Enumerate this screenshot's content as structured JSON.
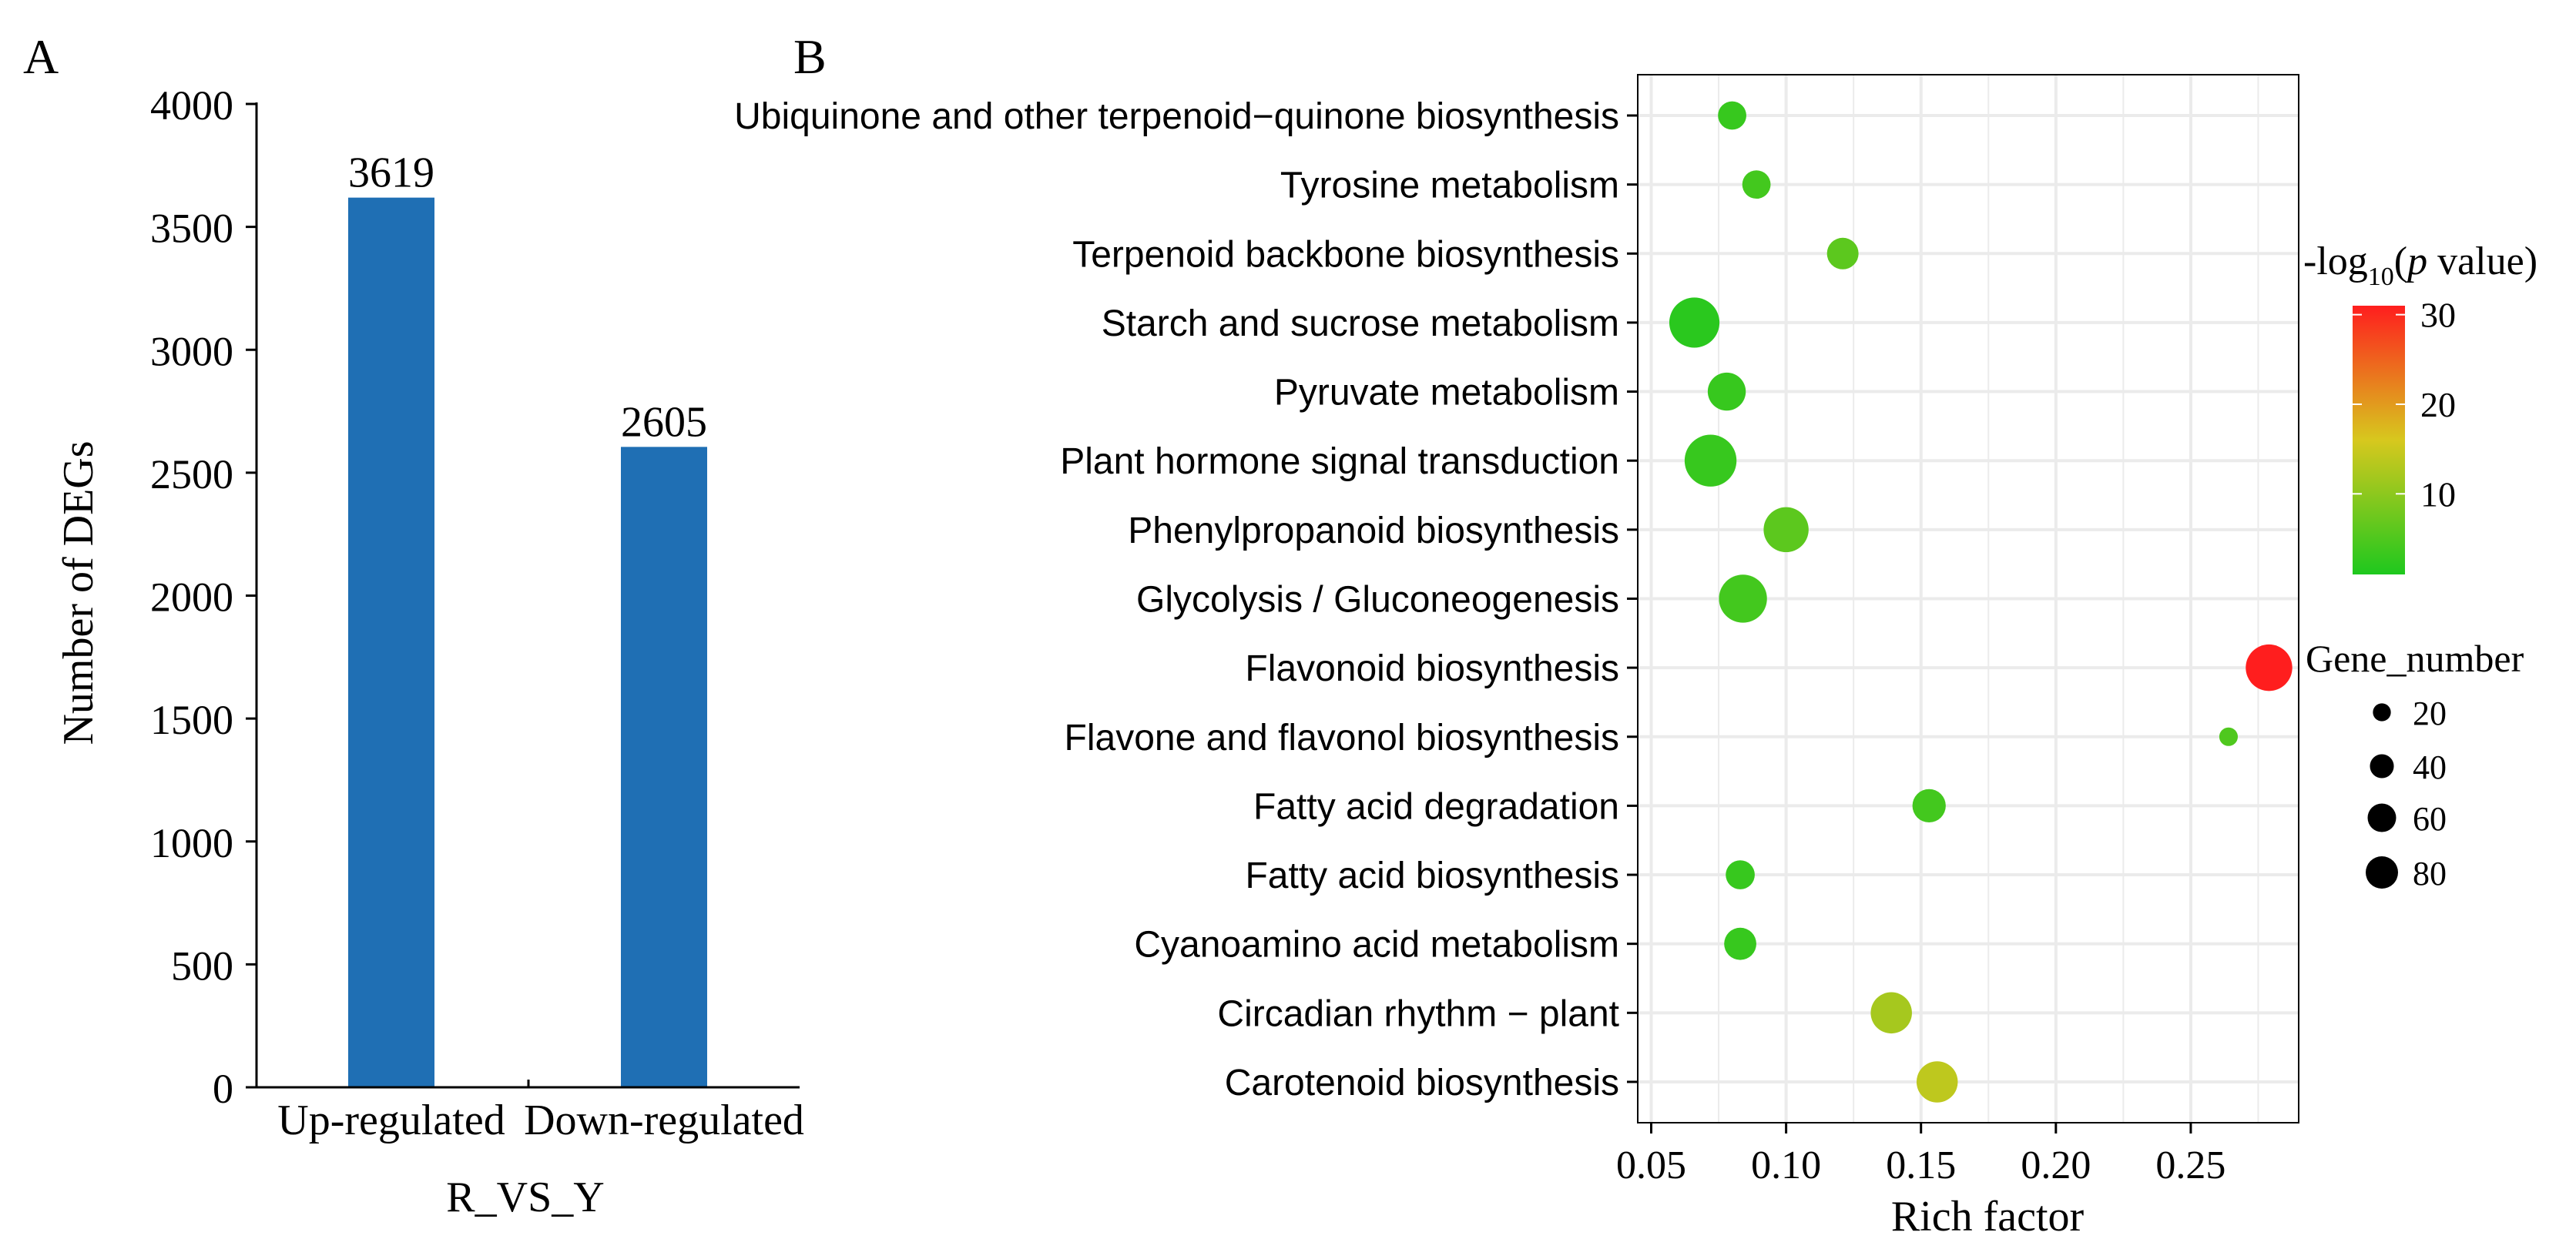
{
  "panel_a_label": "A",
  "panel_b_label": "B",
  "colors": {
    "bar": "#1f6fb4",
    "grid": "#ebebeb",
    "axis": "#000000",
    "gradient_low": "#1ec81e",
    "gradient_mid": "#d7c81e",
    "gradient_high": "#ff1e1e"
  },
  "chart_data": [
    {
      "type": "bar",
      "title": "",
      "xlabel": "R_VS_Y",
      "ylabel": "Number of DEGs",
      "categories": [
        "Up-regulated",
        "Down-regulated"
      ],
      "values": [
        3619,
        2605
      ],
      "data_labels": [
        "3619",
        "2605"
      ],
      "ylim": [
        0,
        4000
      ],
      "yticks": [
        0,
        500,
        1000,
        1500,
        2000,
        2500,
        3000,
        3500,
        4000
      ],
      "ytick_labels": [
        "0",
        "500",
        "1000",
        "1500",
        "2000",
        "2500",
        "3000",
        "3500",
        "4000"
      ]
    },
    {
      "type": "scatter",
      "title": "",
      "xlabel": "Rich factor",
      "ylabel": "",
      "grid": true,
      "xlim": [
        0.045,
        0.29
      ],
      "xticks": [
        0.05,
        0.1,
        0.15,
        0.2,
        0.25
      ],
      "xtick_labels": [
        "0.05",
        "0.10",
        "0.15",
        "0.20",
        "0.25"
      ],
      "points": [
        {
          "pathway": "Ubiquinone and other terpenoid−quinone biosynthesis",
          "rich_factor": 0.08,
          "gene_number": 16,
          "neg_log10_p": 3
        },
        {
          "pathway": "Tyrosine metabolism",
          "rich_factor": 0.089,
          "gene_number": 16,
          "neg_log10_p": 4
        },
        {
          "pathway": "Terpenoid backbone biosynthesis",
          "rich_factor": 0.121,
          "gene_number": 21,
          "neg_log10_p": 6
        },
        {
          "pathway": "Starch and sucrose metabolism",
          "rich_factor": 0.066,
          "gene_number": 63,
          "neg_log10_p": 2
        },
        {
          "pathway": "Pyruvate metabolism",
          "rich_factor": 0.078,
          "gene_number": 33,
          "neg_log10_p": 3
        },
        {
          "pathway": "Plant hormone signal transduction",
          "rich_factor": 0.072,
          "gene_number": 68,
          "neg_log10_p": 3
        },
        {
          "pathway": "Phenylpropanoid biosynthesis",
          "rich_factor": 0.1,
          "gene_number": 49,
          "neg_log10_p": 6
        },
        {
          "pathway": "Glycolysis / Gluconeogenesis",
          "rich_factor": 0.084,
          "gene_number": 57,
          "neg_log10_p": 4
        },
        {
          "pathway": "Flavonoid biosynthesis",
          "rich_factor": 0.279,
          "gene_number": 53,
          "neg_log10_p": 31
        },
        {
          "pathway": "Flavone and flavonol biosynthesis",
          "rich_factor": 0.264,
          "gene_number": 5,
          "neg_log10_p": 5
        },
        {
          "pathway": "Fatty acid degradation",
          "rich_factor": 0.153,
          "gene_number": 24,
          "neg_log10_p": 4
        },
        {
          "pathway": "Fatty acid biosynthesis",
          "rich_factor": 0.083,
          "gene_number": 17,
          "neg_log10_p": 3
        },
        {
          "pathway": "Cyanoamino acid metabolism",
          "rich_factor": 0.083,
          "gene_number": 22,
          "neg_log10_p": 3
        },
        {
          "pathway": "Circadian rhythm − plant",
          "rich_factor": 0.139,
          "gene_number": 40,
          "neg_log10_p": 12
        },
        {
          "pathway": "Carotenoid biosynthesis",
          "rich_factor": 0.156,
          "gene_number": 40,
          "neg_log10_p": 14
        }
      ],
      "color_legend": {
        "title_prefix": "-log",
        "title_sub": "10",
        "title_open": "(",
        "title_p": "p",
        "title_suffix": " value)",
        "range": [
          1,
          31
        ],
        "ticks": [
          10,
          20,
          30
        ],
        "tick_labels": [
          "10",
          "20",
          "30"
        ]
      },
      "size_legend": {
        "title": "Gene_number",
        "values": [
          20,
          40,
          60,
          80
        ],
        "labels": [
          "20",
          "40",
          "60",
          "80"
        ]
      }
    }
  ]
}
